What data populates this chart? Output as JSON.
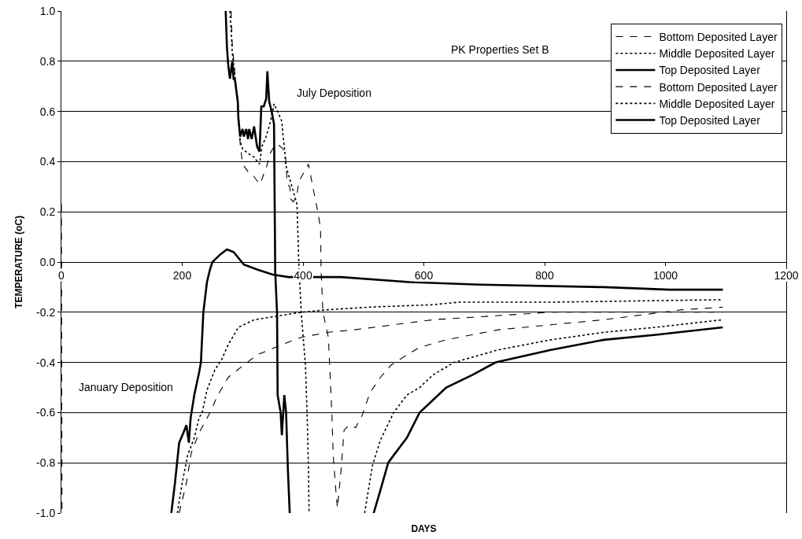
{
  "chart_data": {
    "type": "line",
    "xlabel": "DAYS",
    "ylabel": "TEMPERATURE (oC)",
    "annotations": [
      "PK Properties Set B",
      "July Deposition",
      "January Deposition"
    ],
    "xlim": [
      0,
      1200
    ],
    "xticks": [
      0,
      200,
      400,
      600,
      800,
      1000,
      1200
    ],
    "ylim": [
      -1,
      1
    ],
    "yticks": [
      {
        "value": -1,
        "label": "-1.0"
      },
      -0.8,
      -0.6,
      -0.4,
      -0.2,
      {
        "value": 0,
        "label": "0.0"
      },
      0.2,
      0.4,
      0.6,
      0.8,
      {
        "value": 1,
        "label": "1.0"
      }
    ],
    "grid": "y",
    "legend": "top right",
    "series": [
      {
        "name": "Bottom Deposited Layer",
        "color": "#000000",
        "line_style": "dashed",
        "x": [
          0,
          1,
          100,
          195,
          207,
          215,
          228,
          237,
          246,
          259,
          276,
          302,
          324,
          354,
          397,
          442,
          485,
          550,
          615,
          680,
          810,
          1095
        ],
        "values": [
          0.23,
          -1.0,
          null,
          -1.0,
          -0.88,
          -0.76,
          -0.68,
          -0.64,
          -0.6,
          -0.53,
          -0.46,
          -0.41,
          -0.37,
          -0.34,
          -0.3,
          -0.28,
          -0.27,
          -0.25,
          -0.23,
          -0.22,
          -0.2,
          -0.2
        ]
      },
      {
        "name": "Middle Deposited Layer",
        "color": "#000000",
        "line_style": "dotted",
        "x": [
          192,
          200,
          209,
          220,
          228,
          233,
          241,
          254,
          265,
          276,
          293,
          319,
          345,
          397,
          442,
          507,
          615,
          658,
          810,
          1095
        ],
        "values": [
          -1.0,
          -0.88,
          -0.77,
          -0.7,
          -0.62,
          -0.6,
          -0.51,
          -0.43,
          -0.39,
          -0.33,
          -0.26,
          -0.23,
          -0.22,
          -0.2,
          -0.19,
          -0.18,
          -0.17,
          -0.16,
          -0.16,
          -0.15
        ]
      },
      {
        "name": "Top Deposited Layer",
        "color": "#000000",
        "line_style": "solid",
        "x": [
          182,
          188,
          195,
          202,
          207,
          211,
          214,
          220,
          228,
          231,
          235,
          241,
          246,
          250,
          263,
          274,
          285,
          302,
          324,
          350,
          376,
          420,
          463,
          576,
          693,
          898,
          1006,
          1095
        ],
        "values": [
          -1.0,
          -0.88,
          -0.72,
          -0.68,
          -0.65,
          -0.72,
          -0.62,
          -0.53,
          -0.44,
          -0.4,
          -0.2,
          -0.08,
          -0.03,
          0.0,
          0.03,
          0.05,
          0.04,
          -0.01,
          -0.03,
          -0.05,
          -0.06,
          -0.06,
          -0.06,
          -0.08,
          -0.09,
          -0.1,
          -0.11,
          -0.11
        ]
      },
      {
        "name": "Bottom Deposited Layer",
        "color": "#000000",
        "line_style": "dashed",
        "x": [
          281,
          283,
          287,
          292,
          296,
          300,
          309,
          319,
          328,
          332,
          341,
          345,
          352,
          358,
          367,
          371,
          374,
          378,
          380,
          384,
          390,
          393,
          409,
          417,
          423,
          426,
          429,
          430,
          433,
          442,
          446,
          448,
          450,
          455,
          457,
          463,
          468,
          476,
          487,
          498,
          511,
          528,
          546,
          572,
          593,
          637,
          680,
          723,
          767,
          810,
          898,
          963,
          1028,
          1095
        ],
        "values": [
          1.0,
          0.86,
          0.76,
          0.62,
          0.47,
          0.39,
          0.36,
          0.34,
          0.31,
          0.33,
          0.39,
          0.43,
          0.46,
          0.47,
          0.45,
          0.42,
          0.31,
          0.3,
          0.25,
          0.24,
          0.27,
          0.32,
          0.39,
          0.29,
          0.22,
          0.18,
          0.13,
          -0.04,
          -0.2,
          -0.3,
          -0.51,
          -0.62,
          -0.77,
          -0.93,
          -0.98,
          -0.83,
          -0.67,
          -0.65,
          -0.66,
          -0.61,
          -0.52,
          -0.46,
          -0.41,
          -0.37,
          -0.34,
          -0.31,
          -0.29,
          -0.27,
          -0.26,
          -0.25,
          -0.23,
          -0.21,
          -0.19,
          -0.18
        ]
      },
      {
        "name": "Middle Deposited Layer",
        "color": "#000000",
        "line_style": "dotted",
        "x": [
          279,
          281,
          283,
          285,
          292,
          296,
          300,
          311,
          318,
          328,
          332,
          339,
          345,
          350,
          352,
          358,
          365,
          367,
          370,
          371,
          390,
          393,
          397,
          404,
          407,
          409,
          410,
          450,
          502,
          515,
          528,
          546,
          550,
          572,
          593,
          615,
          650,
          723,
          810,
          898,
          984,
          1095
        ],
        "values": [
          1.0,
          0.92,
          0.83,
          0.79,
          0.64,
          0.48,
          0.45,
          0.43,
          0.42,
          0.39,
          0.46,
          0.5,
          0.55,
          0.6,
          0.63,
          0.6,
          0.56,
          0.5,
          0.44,
          0.39,
          0.23,
          0.0,
          -0.2,
          -0.41,
          -0.62,
          -0.82,
          -1.0,
          null,
          -1.0,
          -0.81,
          -0.71,
          -0.62,
          -0.6,
          -0.53,
          -0.5,
          -0.45,
          -0.4,
          -0.35,
          -0.31,
          -0.28,
          -0.26,
          -0.23
        ]
      },
      {
        "name": "Top Deposited Layer",
        "color": "#000000",
        "line_style": "solid",
        "x": [
          272,
          274,
          276,
          279,
          283,
          285,
          287,
          292,
          293,
          296,
          300,
          302,
          306,
          309,
          311,
          315,
          319,
          324,
          328,
          331,
          335,
          339,
          341,
          344,
          348,
          352,
          354,
          357,
          358,
          363,
          365,
          369,
          372,
          375,
          378,
          450,
          517,
          528,
          541,
          550,
          572,
          593,
          615,
          637,
          680,
          719,
          810,
          898,
          984,
          1095
        ],
        "values": [
          1.0,
          0.86,
          0.79,
          0.73,
          0.8,
          0.73,
          0.73,
          0.64,
          0.57,
          0.5,
          0.53,
          0.5,
          0.53,
          0.49,
          0.53,
          0.49,
          0.54,
          0.46,
          0.44,
          0.62,
          0.62,
          0.65,
          0.76,
          0.64,
          0.6,
          0.55,
          -0.04,
          -0.2,
          -0.53,
          -0.6,
          -0.69,
          -0.53,
          -0.6,
          -0.83,
          -1.0,
          null,
          -1.0,
          -0.91,
          -0.8,
          -0.77,
          -0.7,
          -0.6,
          -0.55,
          -0.5,
          -0.45,
          -0.4,
          -0.35,
          -0.31,
          -0.29,
          -0.26
        ]
      }
    ]
  }
}
